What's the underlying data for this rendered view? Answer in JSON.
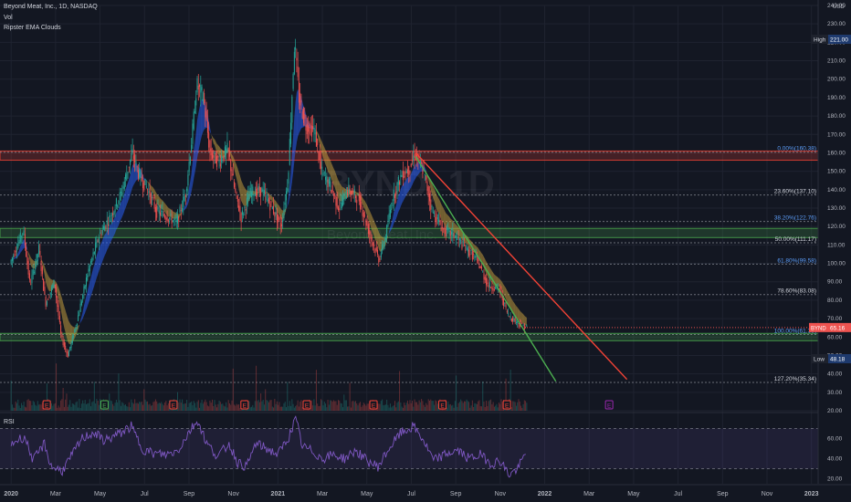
{
  "legend": {
    "symbol": "Beyond Meat, Inc., 1D, NASDAQ",
    "vol": "Vol",
    "clouds": "Ripster EMA Clouds"
  },
  "currency": "USD",
  "rsi_label": "RSI",
  "watermark": {
    "ticker": "BYND, 1D",
    "name": "Beyond Meat, Inc."
  },
  "colors": {
    "background": "#131722",
    "up": "#26a69a",
    "down": "#ef5350",
    "ema_fast_bull": "#26a69a",
    "ema_slow_bull": "#2962ff",
    "ema_bear": "#c8a040",
    "support_zone": "#4caf50",
    "resistance_zone": "#f44336",
    "rsi_line": "#7e57c2",
    "fib_line": "#b2b5be",
    "fib_label_blue": "#5b9cf6",
    "trend_red": "#f44336",
    "trend_green": "#4caf50",
    "earnings_red": "#f44336",
    "earnings_green": "#4caf50",
    "earnings_next": "#9c27b0"
  },
  "chart_data": {
    "type": "candlestick",
    "title": "Beyond Meat, Inc., 1D, NASDAQ",
    "ylabel": "USD",
    "ylim": [
      20,
      240
    ],
    "y_ticks": [
      20,
      30,
      40,
      50,
      60,
      70,
      80,
      90,
      100,
      110,
      120,
      130,
      140,
      150,
      160,
      170,
      180,
      190,
      200,
      210,
      220,
      230,
      240
    ],
    "y_tick_labels": [
      "20.00",
      "30.00",
      "40.00",
      "50.00",
      "60.00",
      "70.00",
      "80.00",
      "90.00",
      "100.00",
      "110.00",
      "120.00",
      "130.00",
      "140.00",
      "150.00",
      "160.00",
      "170.00",
      "180.00",
      "190.00",
      "200.00",
      "210.00",
      "220.00",
      "230.00",
      "240.00"
    ],
    "x_ticks": [
      "2020",
      "Mar",
      "May",
      "Jul",
      "Sep",
      "Nov",
      "2021",
      "Mar",
      "May",
      "Jul",
      "Sep",
      "Nov",
      "2022",
      "Mar",
      "May",
      "Jul",
      "Sep",
      "Nov",
      "2023"
    ],
    "x_tick_months": [
      0,
      2,
      4,
      6,
      8,
      10,
      12,
      14,
      16,
      18,
      20,
      22,
      24,
      26,
      28,
      30,
      32,
      34,
      36
    ],
    "xlim_months": [
      -0.5,
      36.3
    ],
    "price_path": [
      [
        0,
        100
      ],
      [
        0.6,
        118
      ],
      [
        0.9,
        88
      ],
      [
        1.3,
        108
      ],
      [
        1.6,
        78
      ],
      [
        2.0,
        90
      ],
      [
        2.3,
        60
      ],
      [
        2.6,
        50
      ],
      [
        3.0,
        68
      ],
      [
        3.5,
        95
      ],
      [
        4.0,
        115
      ],
      [
        4.5,
        125
      ],
      [
        5.0,
        138
      ],
      [
        5.5,
        160
      ],
      [
        5.8,
        148
      ],
      [
        6.2,
        140
      ],
      [
        6.6,
        128
      ],
      [
        7.0,
        126
      ],
      [
        7.5,
        122
      ],
      [
        7.9,
        138
      ],
      [
        8.2,
        170
      ],
      [
        8.4,
        197
      ],
      [
        8.7,
        190
      ],
      [
        9.0,
        160
      ],
      [
        9.4,
        155
      ],
      [
        9.8,
        162
      ],
      [
        10.1,
        140
      ],
      [
        10.4,
        125
      ],
      [
        10.8,
        138
      ],
      [
        11.3,
        140
      ],
      [
        11.8,
        130
      ],
      [
        12.2,
        120
      ],
      [
        12.5,
        145
      ],
      [
        12.7,
        195
      ],
      [
        12.8,
        220
      ],
      [
        13.0,
        190
      ],
      [
        13.3,
        175
      ],
      [
        13.7,
        172
      ],
      [
        14.0,
        150
      ],
      [
        14.4,
        142
      ],
      [
        14.8,
        130
      ],
      [
        15.2,
        140
      ],
      [
        15.7,
        135
      ],
      [
        16.2,
        115
      ],
      [
        16.6,
        102
      ],
      [
        16.9,
        115
      ],
      [
        17.2,
        135
      ],
      [
        17.6,
        148
      ],
      [
        18.0,
        152
      ],
      [
        18.2,
        160
      ],
      [
        18.6,
        150
      ],
      [
        19.0,
        128
      ],
      [
        19.5,
        118
      ],
      [
        20.0,
        115
      ],
      [
        20.5,
        108
      ],
      [
        21.0,
        102
      ],
      [
        21.5,
        88
      ],
      [
        22.0,
        86
      ],
      [
        22.4,
        72
      ],
      [
        22.8,
        68
      ],
      [
        23.2,
        65.16
      ]
    ],
    "last_price": 65.16,
    "last_price_label": "65.16",
    "ticker": "BYND",
    "high": {
      "label": "High",
      "value": 221.0,
      "value_label": "221.00"
    },
    "low": {
      "label": "Low",
      "value": 48.18,
      "value_label": "48.18"
    },
    "fib_levels": [
      {
        "label": "0.00%(160.38)",
        "value": 160.38,
        "color": "blue"
      },
      {
        "label": "23.60%(137.10)",
        "value": 137.1,
        "color": "white"
      },
      {
        "label": "38.20%(122.76)",
        "value": 122.76,
        "color": "blue"
      },
      {
        "label": "50.00%(111.17)",
        "value": 111.17,
        "color": "white"
      },
      {
        "label": "61.80%(99.58)",
        "value": 99.58,
        "color": "blue"
      },
      {
        "label": "78.60%(83.08)",
        "value": 83.08,
        "color": "white"
      },
      {
        "label": "100.00%(61.39)",
        "value": 61.39,
        "color": "blue"
      },
      {
        "label": "127.20%(35.34)",
        "value": 35.34,
        "color": "white"
      }
    ],
    "zones": [
      {
        "type": "resistance",
        "y_low": 156,
        "y_high": 161
      },
      {
        "type": "support",
        "y_low": 114,
        "y_high": 119
      },
      {
        "type": "support",
        "y_low": 58,
        "y_high": 62
      }
    ],
    "trendlines": [
      {
        "color": "red",
        "from": [
          18.2,
          160
        ],
        "to": [
          27.7,
          37
        ]
      },
      {
        "color": "green",
        "from": [
          18.2,
          158
        ],
        "to": [
          24.5,
          36
        ]
      }
    ],
    "earnings_months": [
      1.6,
      4.2,
      7.3,
      10.5,
      13.3,
      16.3,
      19.4,
      22.3,
      26.9
    ],
    "earnings_marker": "E",
    "rsi": {
      "ylim": [
        15,
        85
      ],
      "y_ticks": [
        20,
        40,
        60
      ],
      "y_tick_labels": [
        "20.00",
        "40.00",
        "60.00"
      ],
      "band": [
        30,
        70
      ],
      "path": [
        [
          0,
          55
        ],
        [
          0.6,
          62
        ],
        [
          1.0,
          38
        ],
        [
          1.5,
          55
        ],
        [
          1.8,
          32
        ],
        [
          2.3,
          28
        ],
        [
          2.7,
          42
        ],
        [
          3.2,
          60
        ],
        [
          3.7,
          66
        ],
        [
          4.2,
          58
        ],
        [
          4.8,
          64
        ],
        [
          5.4,
          72
        ],
        [
          5.9,
          50
        ],
        [
          6.4,
          45
        ],
        [
          7.0,
          44
        ],
        [
          7.5,
          48
        ],
        [
          8.1,
          70
        ],
        [
          8.4,
          78
        ],
        [
          8.8,
          55
        ],
        [
          9.3,
          42
        ],
        [
          9.8,
          55
        ],
        [
          10.2,
          36
        ],
        [
          10.6,
          32
        ],
        [
          11.0,
          55
        ],
        [
          11.5,
          50
        ],
        [
          12.0,
          44
        ],
        [
          12.5,
          62
        ],
        [
          12.8,
          80
        ],
        [
          13.1,
          52
        ],
        [
          13.5,
          48
        ],
        [
          14.0,
          40
        ],
        [
          14.5,
          44
        ],
        [
          15.0,
          40
        ],
        [
          15.5,
          48
        ],
        [
          16.0,
          38
        ],
        [
          16.5,
          32
        ],
        [
          17.0,
          50
        ],
        [
          17.5,
          65
        ],
        [
          18.1,
          72
        ],
        [
          18.5,
          60
        ],
        [
          19.0,
          38
        ],
        [
          19.6,
          45
        ],
        [
          20.1,
          48
        ],
        [
          20.6,
          40
        ],
        [
          21.1,
          44
        ],
        [
          21.6,
          35
        ],
        [
          22.0,
          38
        ],
        [
          22.4,
          24
        ],
        [
          22.8,
          30
        ],
        [
          23.2,
          48
        ]
      ]
    }
  }
}
